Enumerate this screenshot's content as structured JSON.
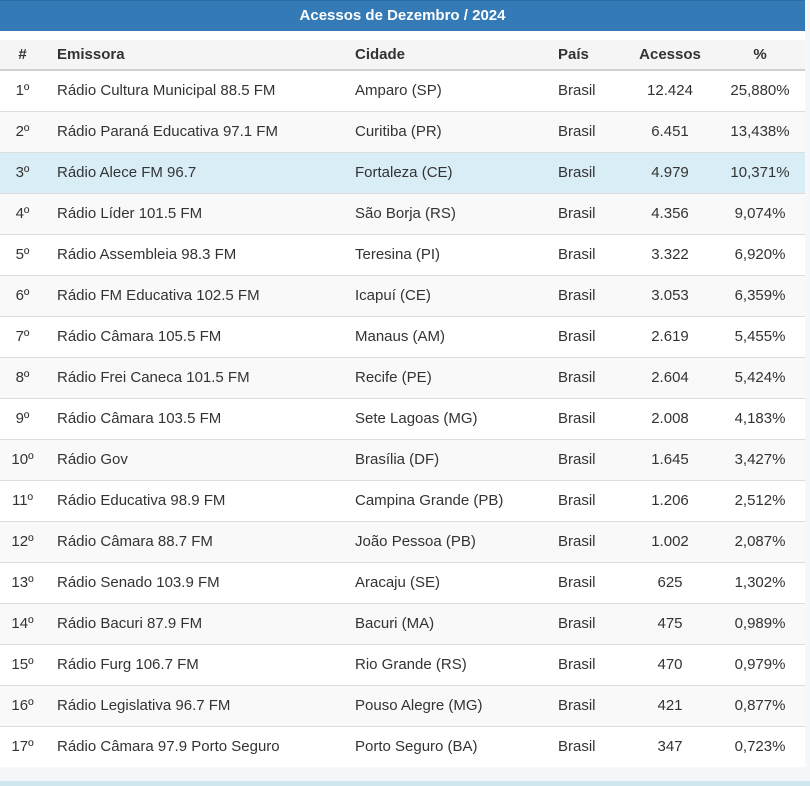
{
  "title": "Acessos de Dezembro / 2024",
  "colors": {
    "title_bar_bg": "#337ab7",
    "title_text": "#ffffff",
    "thead_bg": "#f5f5f5",
    "stripe_bg": "#f9f9f9",
    "highlight_row_bg": "#d9edf7",
    "row_border": "#dddddd",
    "body_text": "#333333",
    "bottom_strip": "#cfe7ef"
  },
  "table": {
    "columns": [
      {
        "key": "rank",
        "label": "#",
        "align": "center"
      },
      {
        "key": "emissora",
        "label": "Emissora",
        "align": "left"
      },
      {
        "key": "cidade",
        "label": "Cidade",
        "align": "left"
      },
      {
        "key": "pais",
        "label": "País",
        "align": "left"
      },
      {
        "key": "acessos",
        "label": "Acessos",
        "align": "center"
      },
      {
        "key": "pct",
        "label": "%",
        "align": "center"
      }
    ],
    "rows": [
      {
        "rank": "1º",
        "emissora": "Rádio Cultura Municipal 88.5 FM",
        "cidade": "Amparo (SP)",
        "pais": "Brasil",
        "acessos": "12.424",
        "pct": "25,880%",
        "highlight": false
      },
      {
        "rank": "2º",
        "emissora": "Rádio Paraná Educativa 97.1 FM",
        "cidade": "Curitiba (PR)",
        "pais": "Brasil",
        "acessos": "6.451",
        "pct": "13,438%",
        "highlight": false
      },
      {
        "rank": "3º",
        "emissora": "Rádio Alece FM 96.7",
        "cidade": "Fortaleza (CE)",
        "pais": "Brasil",
        "acessos": "4.979",
        "pct": "10,371%",
        "highlight": true
      },
      {
        "rank": "4º",
        "emissora": "Rádio Líder 101.5 FM",
        "cidade": "São Borja (RS)",
        "pais": "Brasil",
        "acessos": "4.356",
        "pct": "9,074%",
        "highlight": false
      },
      {
        "rank": "5º",
        "emissora": "Rádio Assembleia 98.3 FM",
        "cidade": "Teresina (PI)",
        "pais": "Brasil",
        "acessos": "3.322",
        "pct": "6,920%",
        "highlight": false
      },
      {
        "rank": "6º",
        "emissora": "Rádio FM Educativa 102.5 FM",
        "cidade": "Icapuí (CE)",
        "pais": "Brasil",
        "acessos": "3.053",
        "pct": "6,359%",
        "highlight": false
      },
      {
        "rank": "7º",
        "emissora": "Rádio Câmara 105.5 FM",
        "cidade": "Manaus (AM)",
        "pais": "Brasil",
        "acessos": "2.619",
        "pct": "5,455%",
        "highlight": false
      },
      {
        "rank": "8º",
        "emissora": "Rádio Frei Caneca 101.5 FM",
        "cidade": "Recife (PE)",
        "pais": "Brasil",
        "acessos": "2.604",
        "pct": "5,424%",
        "highlight": false
      },
      {
        "rank": "9º",
        "emissora": "Rádio Câmara 103.5 FM",
        "cidade": "Sete Lagoas (MG)",
        "pais": "Brasil",
        "acessos": "2.008",
        "pct": "4,183%",
        "highlight": false
      },
      {
        "rank": "10º",
        "emissora": "Rádio Gov",
        "cidade": "Brasília (DF)",
        "pais": "Brasil",
        "acessos": "1.645",
        "pct": "3,427%",
        "highlight": false
      },
      {
        "rank": "11º",
        "emissora": "Rádio Educativa 98.9 FM",
        "cidade": "Campina Grande (PB)",
        "pais": "Brasil",
        "acessos": "1.206",
        "pct": "2,512%",
        "highlight": false
      },
      {
        "rank": "12º",
        "emissora": "Rádio Câmara 88.7 FM",
        "cidade": "João Pessoa (PB)",
        "pais": "Brasil",
        "acessos": "1.002",
        "pct": "2,087%",
        "highlight": false
      },
      {
        "rank": "13º",
        "emissora": "Rádio Senado 103.9 FM",
        "cidade": "Aracaju (SE)",
        "pais": "Brasil",
        "acessos": "625",
        "pct": "1,302%",
        "highlight": false
      },
      {
        "rank": "14º",
        "emissora": "Rádio Bacuri 87.9 FM",
        "cidade": "Bacuri (MA)",
        "pais": "Brasil",
        "acessos": "475",
        "pct": "0,989%",
        "highlight": false
      },
      {
        "rank": "15º",
        "emissora": "Rádio Furg 106.7 FM",
        "cidade": "Rio Grande (RS)",
        "pais": "Brasil",
        "acessos": "470",
        "pct": "0,979%",
        "highlight": false
      },
      {
        "rank": "16º",
        "emissora": "Rádio Legislativa 96.7 FM",
        "cidade": "Pouso Alegre (MG)",
        "pais": "Brasil",
        "acessos": "421",
        "pct": "0,877%",
        "highlight": false
      },
      {
        "rank": "17º",
        "emissora": "Rádio Câmara 97.9 Porto Seguro",
        "cidade": "Porto Seguro (BA)",
        "pais": "Brasil",
        "acessos": "347",
        "pct": "0,723%",
        "highlight": false
      }
    ]
  }
}
